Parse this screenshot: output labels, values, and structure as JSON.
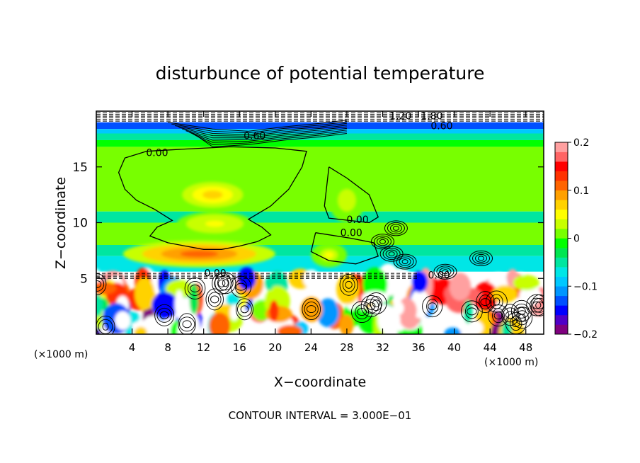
{
  "chart_data": {
    "type": "heatmap",
    "title": "disturbunce of potential temperature",
    "xlabel": "X−coordinate",
    "ylabel": "Z−coordinate",
    "x_unit": "(×1000 m)",
    "z_unit": "(×1000 m)",
    "xlim": [
      0,
      50
    ],
    "ylim": [
      0,
      20
    ],
    "x_ticks": [
      4,
      8,
      12,
      16,
      20,
      24,
      28,
      32,
      36,
      40,
      44,
      48
    ],
    "x_tick_labels": [
      "4",
      "8",
      "12",
      "16",
      "20",
      "24",
      "28",
      "32",
      "36",
      "40",
      "44",
      "48"
    ],
    "y_ticks": [
      5,
      10,
      15
    ],
    "y_tick_labels": [
      "5",
      "10",
      "15"
    ],
    "colorbar": {
      "range": [
        -0.2,
        0.2
      ],
      "ticks": [
        0.2,
        0.1,
        0,
        -0.1,
        -0.2
      ],
      "tick_labels": [
        "0.2",
        "0.1",
        "0",
        "−0.1",
        "−0.2"
      ],
      "colors": [
        "#7f007f",
        "#5000c8",
        "#0000ff",
        "#0050ff",
        "#0096ff",
        "#00c8ff",
        "#00e6e6",
        "#00e6a0",
        "#00e650",
        "#00ff00",
        "#78ff00",
        "#c8ff00",
        "#ffff00",
        "#ffd200",
        "#ffa000",
        "#ff6400",
        "#ff3200",
        "#ff0000",
        "#ff6464",
        "#ffa0a0"
      ]
    },
    "contour_interval_text": "CONTOUR INTERVAL = 3.000E−01",
    "contour_labels": [
      {
        "text": "0.00",
        "x": 6.8,
        "z": 16.3
      },
      {
        "text": "0.00",
        "x": 29.2,
        "z": 10.3
      },
      {
        "text": "0.00",
        "x": 28.5,
        "z": 9.1
      },
      {
        "text": "0.00",
        "x": 13.3,
        "z": 5.5
      },
      {
        "text": "0.00",
        "x": 38.3,
        "z": 5.3
      },
      {
        "text": "0.60",
        "x": 38.6,
        "z": 18.7
      },
      {
        "text": "1.20",
        "x": 34.0,
        "z": 19.6
      },
      {
        "text": "1.80",
        "x": 37.5,
        "z": 19.6
      },
      {
        "text": "0.60",
        "x": 17.7,
        "z": 17.8
      }
    ],
    "bands": [
      {
        "z": [
          19.0,
          20.0
        ],
        "value": null,
        "note": "white, dense dashed contours"
      },
      {
        "z": [
          18.4,
          19.0
        ],
        "value": -0.14
      },
      {
        "z": [
          18.0,
          18.4
        ],
        "value": -0.1
      },
      {
        "z": [
          17.4,
          18.0
        ],
        "value": -0.06
      },
      {
        "z": [
          16.8,
          17.4
        ],
        "value": -0.02
      },
      {
        "z": [
          11.0,
          16.8
        ],
        "value": 0.01
      },
      {
        "z": [
          10.0,
          11.0
        ],
        "value": -0.05
      },
      {
        "z": [
          8.0,
          10.0
        ],
        "value": 0.0
      },
      {
        "z": [
          7.0,
          8.0
        ],
        "value": -0.04
      },
      {
        "z": [
          5.6,
          7.0
        ],
        "value": -0.08
      },
      {
        "z": [
          5.0,
          5.6
        ],
        "value": null,
        "note": "white, dashed contours"
      },
      {
        "z": [
          0.0,
          5.0
        ],
        "value": null,
        "note": "turbulent mixed layer, colors span full range"
      }
    ],
    "warm_anomalies": [
      {
        "x": [
          3.0,
          20.0
        ],
        "z": [
          6.0,
          8.4
        ],
        "peak": 0.12
      },
      {
        "x": [
          9.0,
          17.5
        ],
        "z": [
          8.8,
          11.0
        ],
        "peak": 0.05
      },
      {
        "x": [
          8.5,
          17.5
        ],
        "z": [
          11.0,
          14.0
        ],
        "peak": 0.06
      },
      {
        "x": [
          24.0,
          28.0
        ],
        "z": [
          6.0,
          8.2
        ],
        "peak": 0.04
      },
      {
        "x": [
          26.0,
          30.0
        ],
        "z": [
          10.0,
          14.0
        ],
        "peak": 0.03
      }
    ],
    "grid": false,
    "legend": "colorbar-right"
  }
}
